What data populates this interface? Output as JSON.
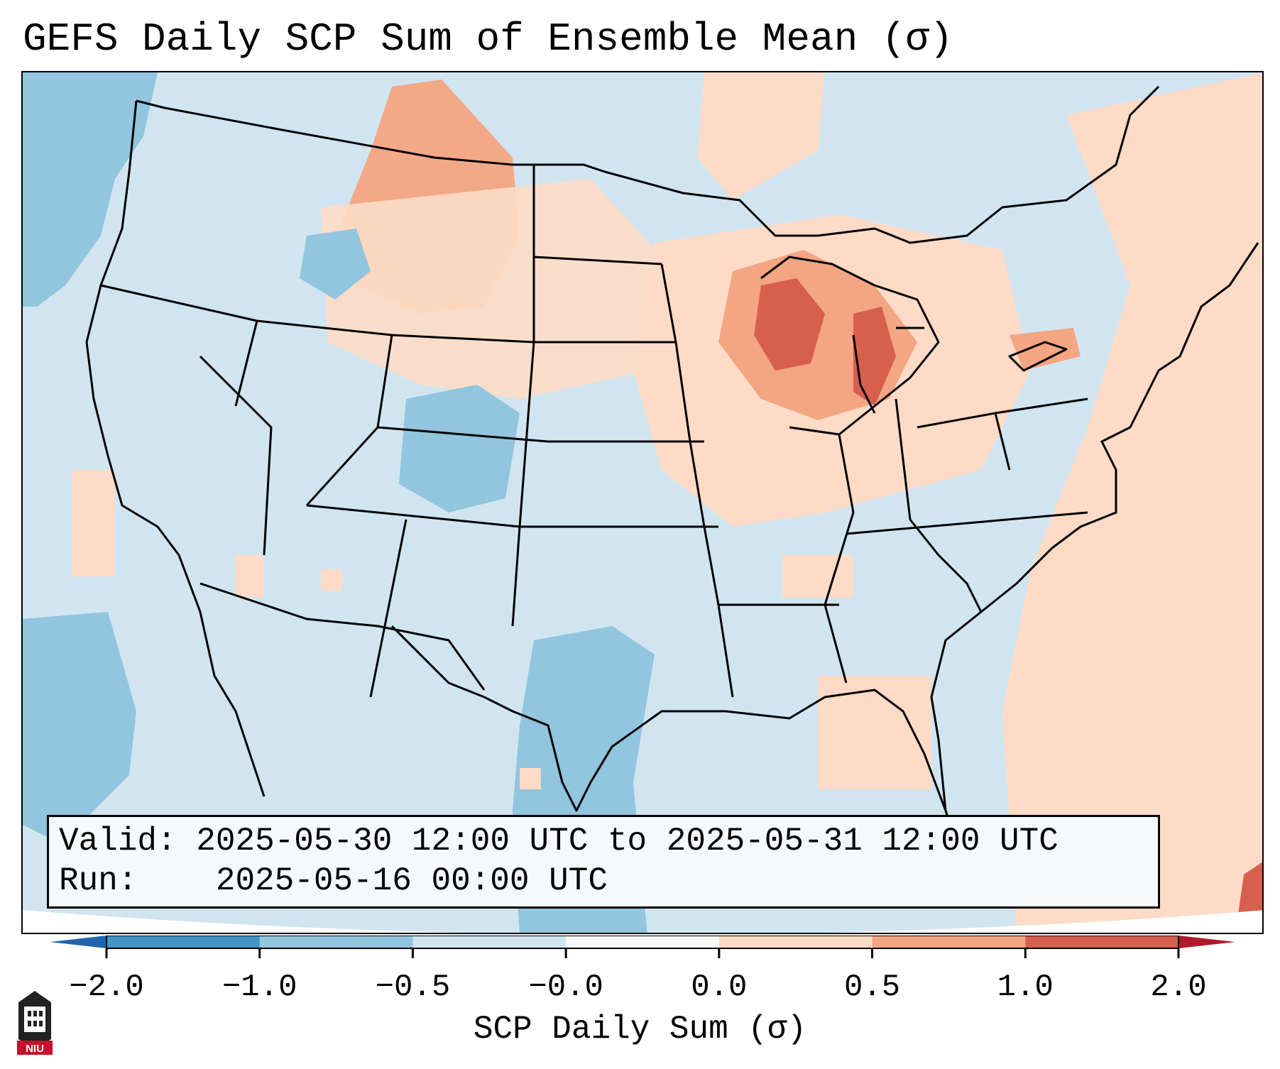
{
  "title": "GEFS Daily SCP Sum of Ensemble Mean (σ)",
  "info": {
    "valid_label": "Valid:",
    "valid_value": "2025-05-30 12:00 UTC to 2025-05-31 12:00 UTC",
    "run_label": "Run:",
    "run_value": "2025-05-16 00:00 UTC"
  },
  "colorbar": {
    "title": "SCP Daily Sum (σ)",
    "tick_labels": [
      "−2.0",
      "−1.0",
      "−0.5",
      "−0.0",
      "0.0",
      "0.5",
      "1.0",
      "2.0"
    ],
    "colors": [
      "#4393c3",
      "#92c5de",
      "#d1e5f0",
      "#f7f7f7",
      "#fddbc7",
      "#f4a582",
      "#d6604d"
    ],
    "extend_low_color": "#2166ac",
    "extend_high_color": "#b2182b"
  },
  "logo": {
    "label": "NIU"
  }
}
